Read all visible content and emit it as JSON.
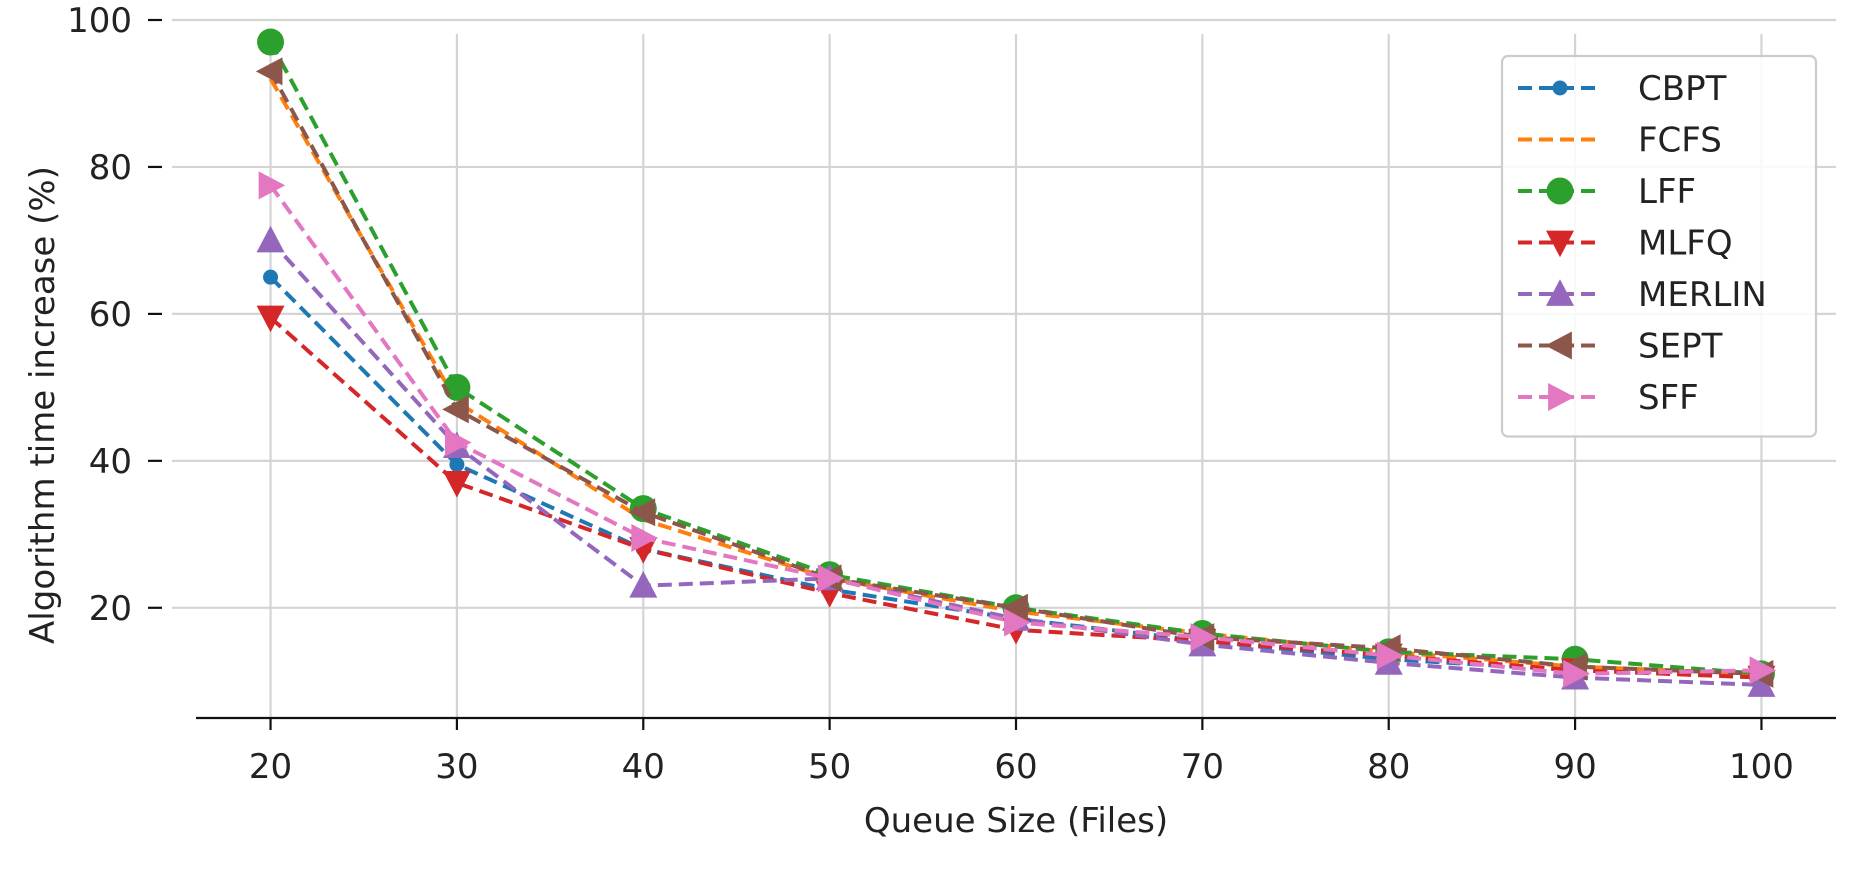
{
  "chart_data": {
    "type": "line",
    "xlabel": "Queue Size (Files)",
    "ylabel": "Algorithm time increase (%)",
    "x": [
      20,
      30,
      40,
      50,
      60,
      70,
      80,
      90,
      100
    ],
    "xlim": [
      16,
      104
    ],
    "ylim": [
      5,
      100
    ],
    "xticks": [
      20,
      30,
      40,
      50,
      60,
      70,
      80,
      90,
      100
    ],
    "yticks": [
      20,
      40,
      60,
      80,
      100
    ],
    "grid": true,
    "legend_position": "top-right",
    "series": [
      {
        "name": "CBPT",
        "color": "#1f77b4",
        "marker": "point",
        "values": [
          65,
          39.5,
          28,
          22.5,
          18.5,
          15.5,
          13,
          11.5,
          11
        ]
      },
      {
        "name": "FCFS",
        "color": "#ff7f0e",
        "marker": "none",
        "values": [
          92,
          48,
          32,
          24,
          19.5,
          16.5,
          14,
          12,
          11
        ]
      },
      {
        "name": "LFF",
        "color": "#2ca02c",
        "marker": "circle",
        "values": [
          97,
          50,
          33.5,
          24.5,
          20,
          16.5,
          14,
          13,
          11
        ]
      },
      {
        "name": "MLFQ",
        "color": "#d62728",
        "marker": "triangle-down",
        "values": [
          59.5,
          37,
          28,
          22,
          17,
          15.5,
          13.5,
          11.5,
          10.5
        ]
      },
      {
        "name": "MERLIN",
        "color": "#9467bd",
        "marker": "triangle-up",
        "values": [
          70,
          42,
          23,
          24,
          18.5,
          15,
          12.5,
          10.5,
          9.5
        ]
      },
      {
        "name": "SEPT",
        "color": "#8c564b",
        "marker": "triangle-left",
        "values": [
          93,
          47,
          33,
          24,
          20,
          16,
          14.5,
          12,
          11
        ]
      },
      {
        "name": "SFF",
        "color": "#e377c2",
        "marker": "triangle-right",
        "values": [
          77.5,
          42.5,
          29.5,
          24,
          18,
          16,
          13.5,
          11,
          11.5
        ]
      }
    ]
  }
}
